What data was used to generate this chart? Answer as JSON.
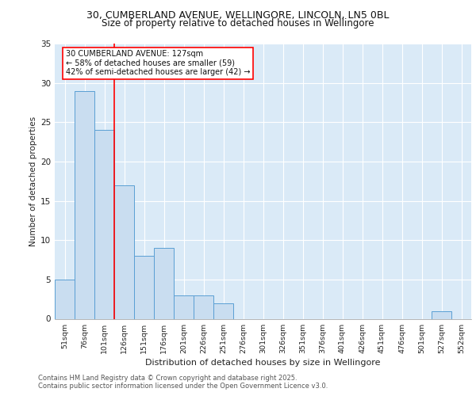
{
  "title_line1": "30, CUMBERLAND AVENUE, WELLINGORE, LINCOLN, LN5 0BL",
  "title_line2": "Size of property relative to detached houses in Wellingore",
  "xlabel": "Distribution of detached houses by size in Wellingore",
  "ylabel": "Number of detached properties",
  "bar_labels": [
    "51sqm",
    "76sqm",
    "101sqm",
    "126sqm",
    "151sqm",
    "176sqm",
    "201sqm",
    "226sqm",
    "251sqm",
    "276sqm",
    "301sqm",
    "326sqm",
    "351sqm",
    "376sqm",
    "401sqm",
    "426sqm",
    "451sqm",
    "476sqm",
    "501sqm",
    "527sqm",
    "552sqm"
  ],
  "bar_values": [
    5,
    29,
    24,
    17,
    8,
    9,
    3,
    3,
    2,
    0,
    0,
    0,
    0,
    0,
    0,
    0,
    0,
    0,
    0,
    1,
    0
  ],
  "bar_color": "#c9ddf0",
  "bar_edge_color": "#5a9fd4",
  "background_color": "#daeaf7",
  "red_line_x": 2.5,
  "annotation_text": "30 CUMBERLAND AVENUE: 127sqm\n← 58% of detached houses are smaller (59)\n42% of semi-detached houses are larger (42) →",
  "ylim": [
    0,
    35
  ],
  "yticks": [
    0,
    5,
    10,
    15,
    20,
    25,
    30,
    35
  ],
  "footer_line1": "Contains HM Land Registry data © Crown copyright and database right 2025.",
  "footer_line2": "Contains public sector information licensed under the Open Government Licence v3.0."
}
